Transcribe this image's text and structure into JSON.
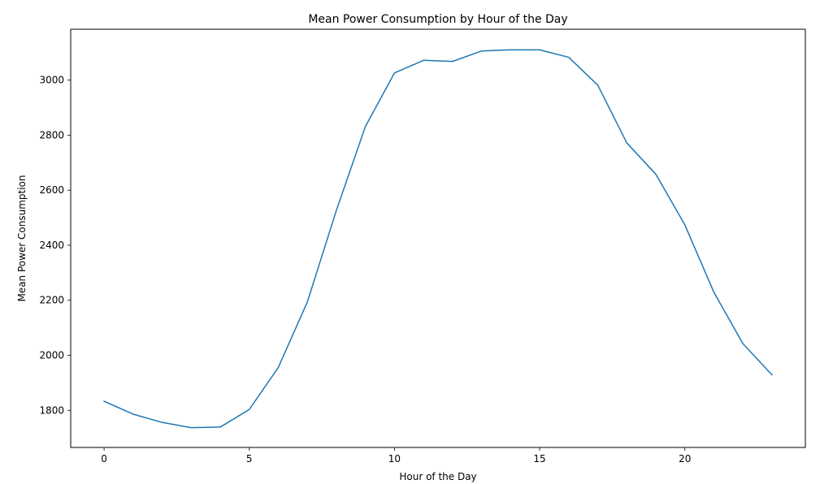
{
  "chart_data": {
    "type": "line",
    "title": "Mean Power Consumption by Hour of the Day",
    "xlabel": "Hour of the Day",
    "ylabel": "Mean Power Consumption",
    "xlim": [
      -1.15,
      24.15
    ],
    "ylim": [
      1665,
      3185
    ],
    "xticks": [
      0,
      5,
      10,
      15,
      20
    ],
    "yticks": [
      1800,
      2000,
      2200,
      2400,
      2600,
      2800,
      3000
    ],
    "grid": false,
    "line_color": "#1f77b4",
    "series": [
      {
        "x": [
          0,
          1,
          2,
          3,
          4,
          5,
          6,
          7,
          8,
          9,
          10,
          11,
          12,
          13,
          14,
          15,
          16,
          17,
          18,
          19,
          20,
          21,
          22,
          23
        ],
        "values": [
          1833,
          1786,
          1756,
          1737,
          1739,
          1803,
          1956,
          2194,
          2527,
          2832,
          3026,
          3072,
          3068,
          3106,
          3110,
          3110,
          3083,
          2982,
          2772,
          2658,
          2474,
          2229,
          2042,
          1929
        ]
      }
    ]
  }
}
